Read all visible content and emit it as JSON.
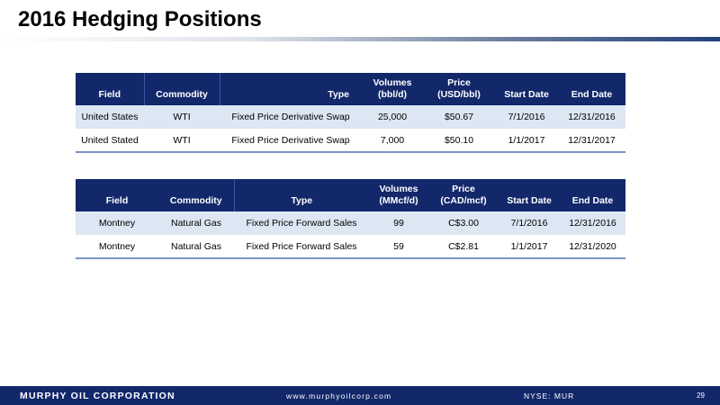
{
  "title": "2016 Hedging Positions",
  "table1": {
    "headers": [
      "Field",
      "Commodity",
      "Type",
      "Volumes\n(bbl/d)",
      "Price\n(USD/bbl)",
      "Start Date",
      "End Date"
    ],
    "rows": [
      [
        "United States",
        "WTI",
        "Fixed Price Derivative Swap",
        "25,000",
        "$50.67",
        "7/1/2016",
        "12/31/2016"
      ],
      [
        "United Stated",
        "WTI",
        "Fixed Price Derivative Swap",
        "7,000",
        "$50.10",
        "1/1/2017",
        "12/31/2017"
      ]
    ]
  },
  "table2": {
    "headers": [
      "Field",
      "Commodity",
      "Type",
      "Volumes\n(MMcf/d)",
      "Price\n(CAD/mcf)",
      "Start Date",
      "End Date"
    ],
    "rows": [
      [
        "Montney",
        "Natural Gas",
        "Fixed Price Forward Sales",
        "99",
        "C$3.00",
        "7/1/2016",
        "12/31/2016"
      ],
      [
        "Montney",
        "Natural Gas",
        "Fixed Price Forward Sales",
        "59",
        "C$2.81",
        "1/1/2017",
        "12/31/2020"
      ]
    ]
  },
  "footer": {
    "company": "MURPHY OIL CORPORATION",
    "website": "www.murphyoilcorp.com",
    "ticker": "NYSE: MUR",
    "page": "29"
  },
  "colors": {
    "header_bg": "#13286b",
    "row_shade": "#dde7f3",
    "footer_bg": "#13286b"
  }
}
